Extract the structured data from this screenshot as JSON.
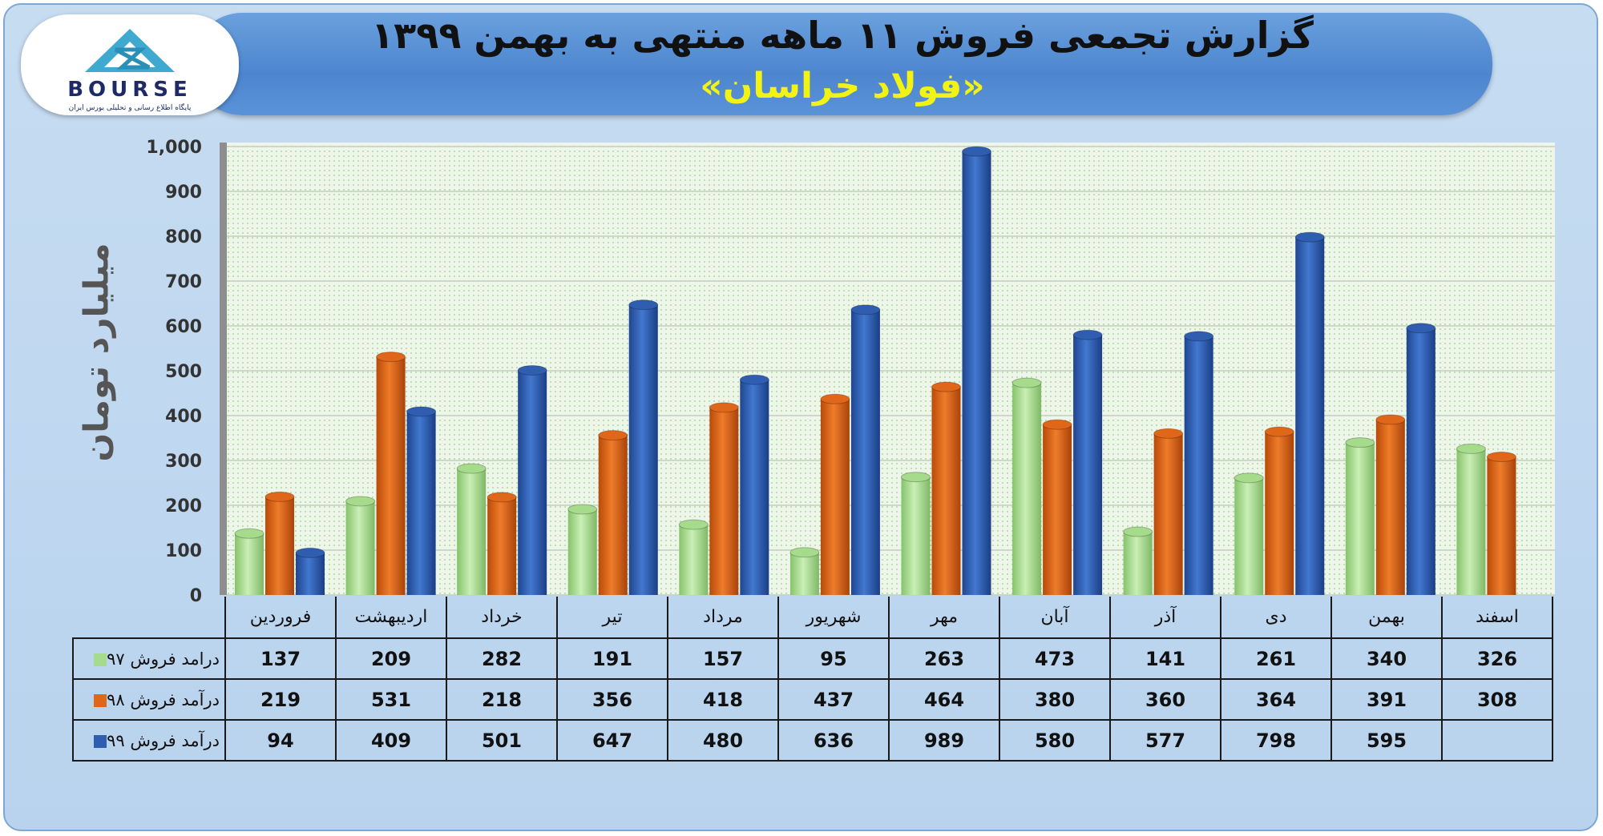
{
  "header": {
    "title": "گزارش تجمعی فروش ۱۱ ماهه منتهی به بهمن ۱۳۹۹",
    "subtitle": "«فولاد خراسان»"
  },
  "logo": {
    "text": "BOURSE",
    "tagline": "پایگاه اطلاع رسانی و تحلیلی بورس ایران"
  },
  "colors": {
    "series97": "#a6db8c",
    "series98": "#e0661a",
    "series99": "#2f5db0",
    "plot_bg": "#eef6ea",
    "grid": "#c4cfbf"
  },
  "chart_data": {
    "type": "bar",
    "title": "گزارش تجمعی فروش ۱۱ ماهه منتهی به بهمن ۱۳۹۹",
    "subtitle": "«فولاد خراسان»",
    "ylabel": "میلیارد تومان",
    "ylim": [
      0,
      1000
    ],
    "yticks": [
      "0",
      "100",
      "200",
      "300",
      "400",
      "500",
      "600",
      "700",
      "800",
      "900",
      "1,000"
    ],
    "grid": true,
    "categories": [
      "فروردین",
      "اردیبهشت",
      "خرداد",
      "تیر",
      "مرداد",
      "شهریور",
      "مهر",
      "آبان",
      "آذر",
      "دی",
      "بهمن",
      "اسفند"
    ],
    "series": [
      {
        "name": "درامد فروش ۹۷",
        "values": [
          137,
          209,
          282,
          191,
          157,
          95,
          263,
          473,
          141,
          261,
          340,
          326
        ]
      },
      {
        "name": "درآمد فروش ۹۸",
        "values": [
          219,
          531,
          218,
          356,
          418,
          437,
          464,
          380,
          360,
          364,
          391,
          308
        ]
      },
      {
        "name": "درآمد فروش ۹۹",
        "values": [
          94,
          409,
          501,
          647,
          480,
          636,
          989,
          580,
          577,
          798,
          595,
          null
        ]
      }
    ]
  }
}
